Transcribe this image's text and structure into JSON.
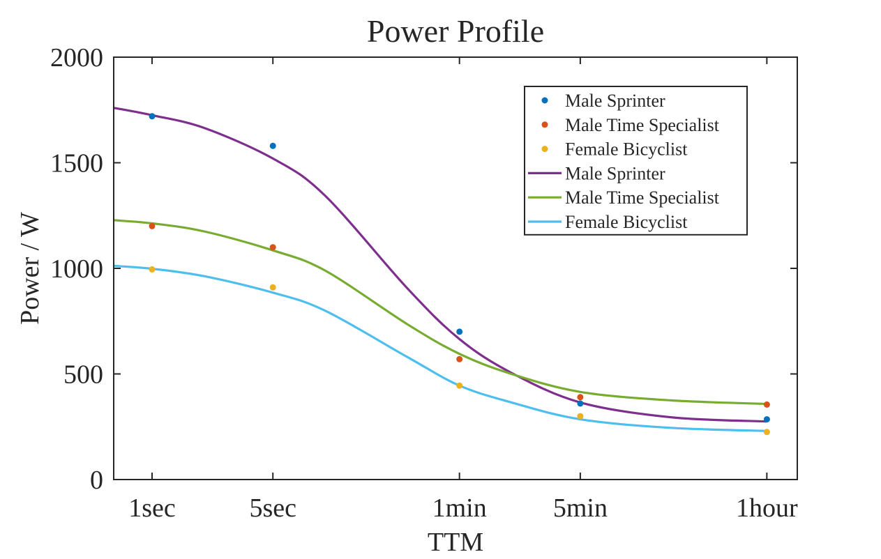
{
  "chart_data": {
    "type": "scatter",
    "title": "Power Profile",
    "xlabel": "TTM",
    "ylabel": "Power / W",
    "x_scale": "log",
    "categories": [
      "1sec",
      "5sec",
      "1min",
      "5min",
      "1hour"
    ],
    "x_seconds": [
      1,
      5,
      60,
      300,
      3600
    ],
    "xlim_seconds": [
      0.6,
      5400
    ],
    "ylim": [
      0,
      2000
    ],
    "yticks": [
      0,
      500,
      1000,
      1500,
      2000
    ],
    "grid": false,
    "legend_position": "top-right",
    "points": [
      {
        "name": "Male Sprinter",
        "color": "#0072BD",
        "values": [
          1720,
          1580,
          700,
          360,
          285
        ]
      },
      {
        "name": "Male Time Specialist",
        "color": "#D95319",
        "values": [
          1200,
          1100,
          570,
          390,
          355
        ]
      },
      {
        "name": "Female Bicyclist",
        "color": "#EDB120",
        "values": [
          995,
          910,
          445,
          300,
          225
        ]
      }
    ],
    "fits": [
      {
        "name": "Male Sprinter",
        "color": "#7E2F8E",
        "curve": {
          "x_seconds": [
            0.6,
            1,
            2,
            5,
            10,
            30,
            60,
            120,
            300,
            1000,
            3600
          ],
          "values": [
            1760,
            1725,
            1665,
            1520,
            1345,
            905,
            665,
            505,
            365,
            295,
            275
          ]
        }
      },
      {
        "name": "Male Time Specialist",
        "color": "#77AC30",
        "curve": {
          "x_seconds": [
            0.6,
            1,
            2,
            5,
            10,
            30,
            60,
            120,
            300,
            1000,
            3600
          ],
          "values": [
            1228,
            1213,
            1175,
            1085,
            990,
            735,
            595,
            500,
            415,
            375,
            358
          ]
        }
      },
      {
        "name": "Female Bicyclist",
        "color": "#4DBEEE",
        "curve": {
          "x_seconds": [
            0.6,
            1,
            2,
            5,
            10,
            30,
            60,
            120,
            300,
            1000,
            3600
          ],
          "values": [
            1012,
            998,
            963,
            885,
            800,
            580,
            445,
            365,
            285,
            245,
            230
          ]
        }
      }
    ]
  }
}
